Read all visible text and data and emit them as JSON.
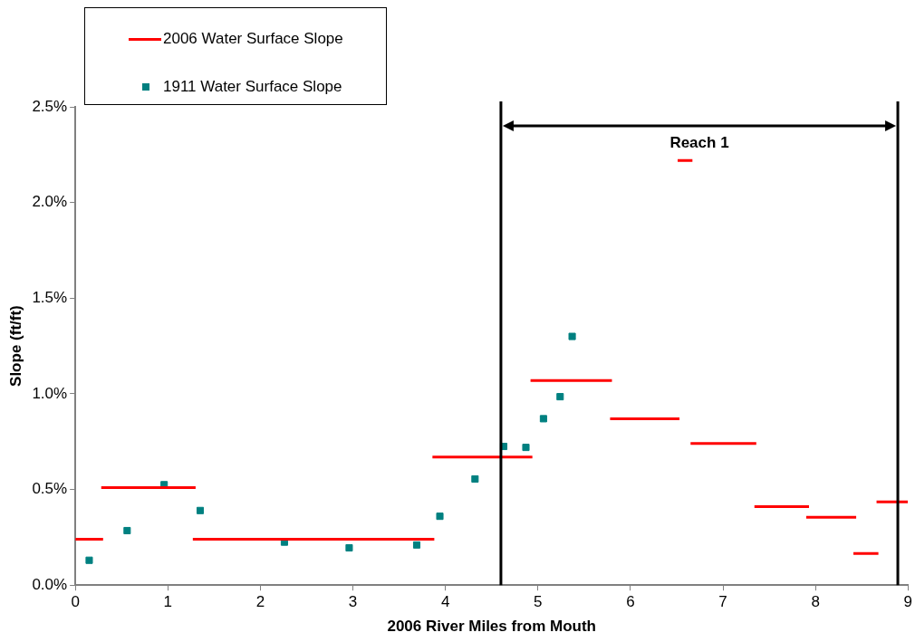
{
  "chart_data": {
    "type": "line",
    "xlabel": "2006 River Miles from Mouth",
    "ylabel": "Slope (ft/ft)",
    "xlim": [
      0,
      9
    ],
    "xticks": [
      0,
      1,
      2,
      3,
      4,
      5,
      6,
      7,
      8,
      9
    ],
    "ylim": [
      0,
      2.5
    ],
    "yticks": [
      {
        "value": 0,
        "label": "0.0%"
      },
      {
        "value": 0.5,
        "label": "0.5%"
      },
      {
        "value": 1,
        "label": "1.0%"
      },
      {
        "value": 1.5,
        "label": "1.5%"
      },
      {
        "value": 2,
        "label": "2.0%"
      },
      {
        "value": 2.5,
        "label": "2.5%"
      }
    ],
    "grid": false,
    "legend": "top left",
    "series": [
      {
        "name": "2006 Water Surface Slope",
        "color": "#ff0000",
        "marker": "none",
        "line_style": "solid",
        "x": [
          0,
          0.3,
          0.28,
          1.3,
          1.27,
          3.88,
          3.86,
          4.94,
          4.92,
          5.8,
          5.78,
          6.53,
          6.51,
          6.67,
          6.65,
          7.36,
          7.34,
          7.93,
          7.9,
          8.44,
          8.41,
          8.68,
          8.66,
          9
        ],
        "values": [
          0.24,
          0.24,
          0.51,
          0.51,
          0.24,
          0.24,
          0.67,
          0.67,
          1.07,
          1.07,
          0.87,
          0.87,
          2.22,
          2.22,
          0.74,
          0.74,
          0.41,
          0.41,
          0.355,
          0.355,
          0.165,
          0.165,
          0.435,
          0.435
        ]
      },
      {
        "name": "1911 Water Surface Slope",
        "type": "scatter",
        "color": "#008080",
        "marker": "square",
        "x": [
          0.15,
          0.56,
          0.96,
          1.35,
          2.26,
          2.96,
          3.69,
          3.94,
          4.32,
          4.63,
          4.87,
          5.06,
          5.24,
          5.37
        ],
        "values": [
          0.13,
          0.285,
          0.525,
          0.39,
          0.225,
          0.195,
          0.21,
          0.36,
          0.555,
          0.725,
          0.72,
          0.87,
          0.985,
          1.3
        ]
      }
    ],
    "ref_lines": [
      {
        "axis": "x",
        "value": 4.6,
        "color": "#000000",
        "line_style": "solid"
      },
      {
        "axis": "x",
        "value": 8.89,
        "color": "#000000",
        "line_style": "solid"
      }
    ],
    "annotations": [
      "Reach 1"
    ]
  }
}
